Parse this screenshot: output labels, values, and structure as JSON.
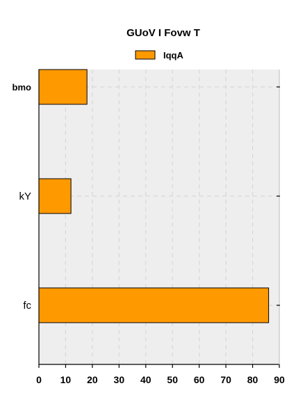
{
  "chart_data": {
    "type": "bar",
    "orientation": "horizontal",
    "title": "GUoV I Fovw T",
    "categories": [
      "bmo",
      "kY",
      "fc"
    ],
    "series": [
      {
        "name": "IqqA",
        "values": [
          18,
          12,
          86
        ]
      }
    ],
    "xlabel": "",
    "ylabel": "",
    "xlim": [
      0,
      90
    ],
    "xticks": [
      0,
      10,
      20,
      30,
      40,
      50,
      60,
      70,
      80,
      90
    ],
    "grid": true,
    "legend_position": "top-center",
    "colors": {
      "bar_fill": "#ff9900",
      "bar_stroke": "#000000",
      "plot_background": "#eeeeee",
      "grid": "#d8d8d8"
    }
  }
}
